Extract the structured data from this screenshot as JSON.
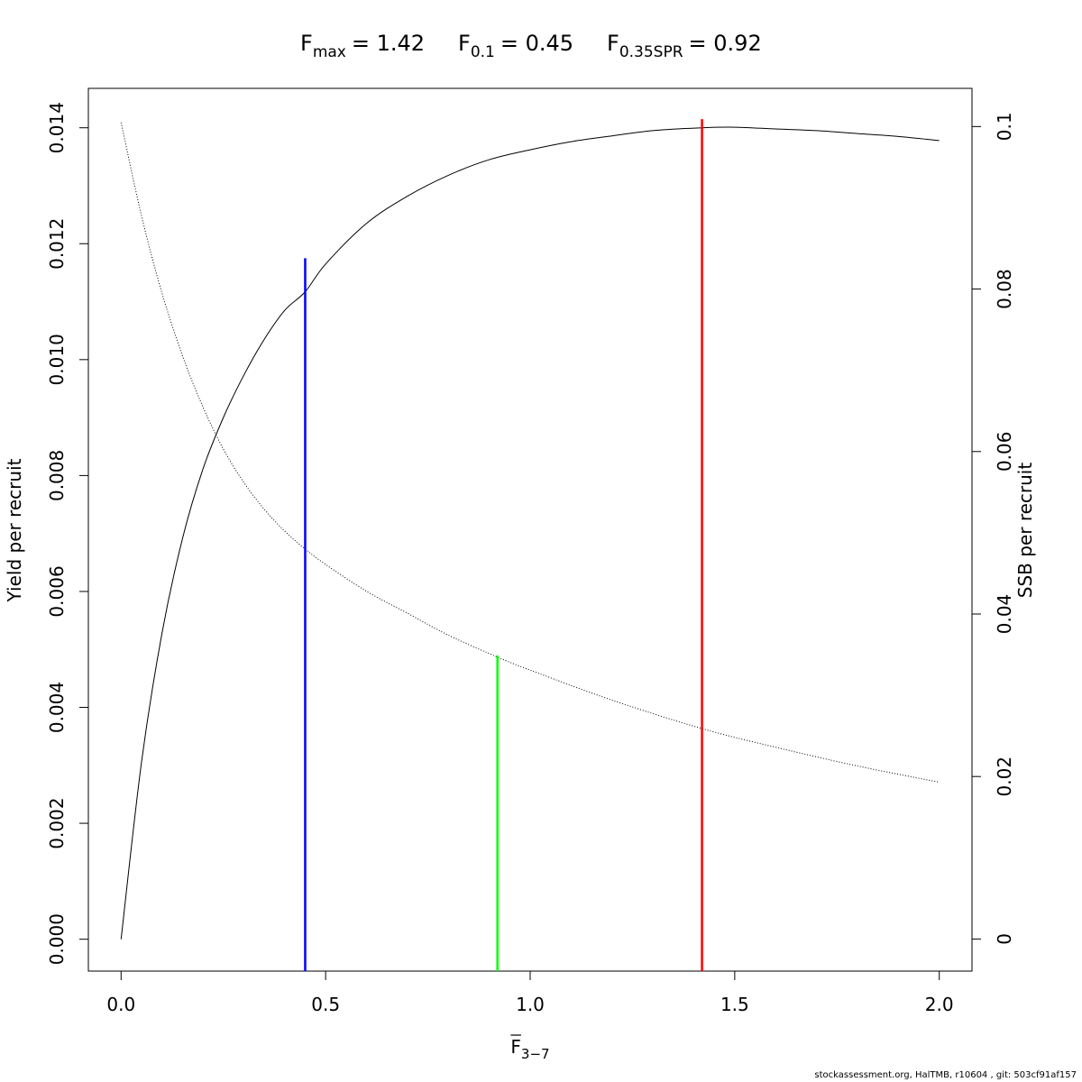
{
  "title": {
    "fmax": {
      "base": "F",
      "sub": "max",
      "value": "= 1.42"
    },
    "f01": {
      "base": "F",
      "sub": "0.1",
      "value": "= 0.45"
    },
    "fspr": {
      "base": "F",
      "sub": "0.35SPR",
      "value": "= 0.92"
    }
  },
  "footer": "stockassessment.org, HalTMB, r10604 , git: 503cf91af157",
  "chart_data": {
    "type": "line",
    "xlabel": {
      "base": "F",
      "sub": "3−7",
      "overline": true
    },
    "ylabel_left": "Yield per recruit",
    "ylabel_right": "SSB per recruit",
    "xlim": [
      -0.08,
      2.08
    ],
    "ylim_left": [
      -0.00055,
      0.01468
    ],
    "ylim_right": [
      -0.00395,
      0.1047
    ],
    "x_ticks": [
      0,
      0.5,
      1,
      1.5,
      2
    ],
    "x_tick_labels": [
      "0.0",
      "0.5",
      "1.0",
      "1.5",
      "2.0"
    ],
    "y_left_ticks": [
      0,
      0.002,
      0.004,
      0.006,
      0.008,
      0.01,
      0.012,
      0.014
    ],
    "y_left_tick_labels": [
      "0.000",
      "0.002",
      "0.004",
      "0.006",
      "0.008",
      "0.010",
      "0.012",
      "0.014"
    ],
    "y_right_ticks": [
      0,
      0.02,
      0.04,
      0.06,
      0.08,
      0.1
    ],
    "y_right_tick_labels": [
      "0",
      "0.02",
      "0.04",
      "0.06",
      "0.08",
      "0.1"
    ],
    "series": [
      {
        "axis": "left",
        "style": "solid",
        "color": "#000000",
        "x": [
          0,
          0.05,
          0.1,
          0.15,
          0.2,
          0.25,
          0.3,
          0.35,
          0.4,
          0.45,
          0.5,
          0.6,
          0.7,
          0.8,
          0.9,
          1.0,
          1.1,
          1.2,
          1.3,
          1.42,
          1.5,
          1.6,
          1.7,
          1.8,
          1.9,
          2.0
        ],
        "y": [
          0,
          0.00306,
          0.00528,
          0.00691,
          0.00811,
          0.009,
          0.00973,
          0.01035,
          0.01085,
          0.01117,
          0.01165,
          0.01235,
          0.01282,
          0.01318,
          0.01345,
          0.01362,
          0.01376,
          0.01386,
          0.01395,
          0.014,
          0.01401,
          0.01398,
          0.01395,
          0.0139,
          0.01385,
          0.01378
        ]
      },
      {
        "axis": "right",
        "style": "dotted",
        "color": "#000000",
        "x": [
          0,
          0.05,
          0.1,
          0.15,
          0.2,
          0.25,
          0.3,
          0.35,
          0.4,
          0.45,
          0.5,
          0.6,
          0.7,
          0.8,
          0.92,
          1.0,
          1.2,
          1.42,
          1.6,
          1.8,
          2.0
        ],
        "y": [
          0.1005,
          0.089,
          0.0795,
          0.0718,
          0.0655,
          0.0603,
          0.0562,
          0.0529,
          0.0502,
          0.048,
          0.0461,
          0.0428,
          0.0401,
          0.0374,
          0.0347,
          0.0331,
          0.0294,
          0.0259,
          0.0236,
          0.0213,
          0.0193
        ]
      }
    ],
    "reference_lines": [
      {
        "name": "F0.1",
        "x": 0.45,
        "y_top": 0.01175,
        "axis": "left",
        "color": "#0000ff"
      },
      {
        "name": "F0.35SPR",
        "x": 0.92,
        "y_top": 0.0349,
        "axis": "right",
        "color": "#00ff00"
      },
      {
        "name": "Fmax",
        "x": 1.42,
        "y_top": 0.01415,
        "axis": "left",
        "color": "#ff0000"
      }
    ],
    "grid": false,
    "legend": "none"
  }
}
